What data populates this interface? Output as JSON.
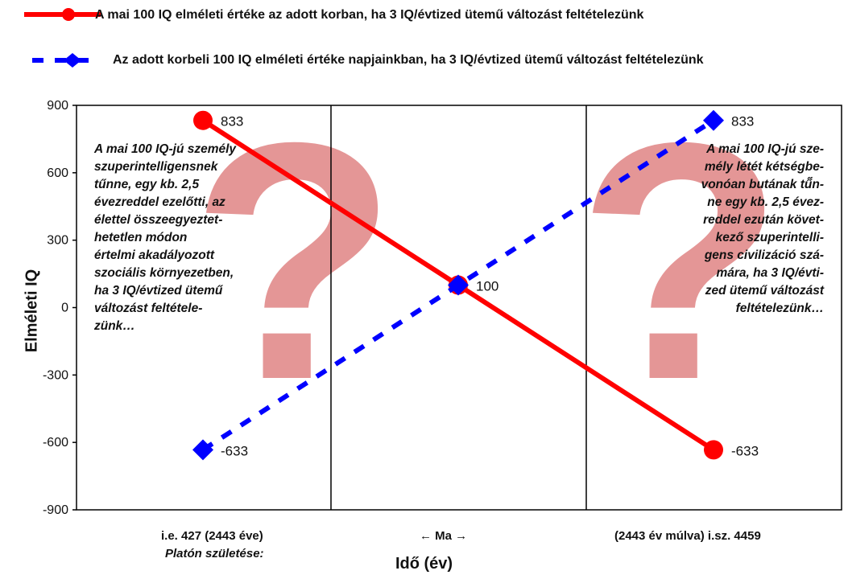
{
  "colors": {
    "series_red": "#ff0000",
    "series_blue": "#0000ff",
    "question_mark": "#d96a6a"
  },
  "legend": [
    {
      "label": "A mai 100 IQ elméleti értéke az adott korban, ha 3 IQ/évtized ütemű változást feltételezünk",
      "color": "#ff0000",
      "style": "solid-circle"
    },
    {
      "label": "Az adott korbeli 100 IQ elméleti értéke napjainkban, ha 3 IQ/évtized ütemű változást feltételezünk",
      "color": "#0000ff",
      "style": "dashed-diamond"
    }
  ],
  "notes": {
    "left": [
      "A mai 100 IQ-jú személy",
      "szuperintelligensnek",
      "tűnne, egy kb. 2,5",
      "évezreddel ezelőtti, az",
      "élettel  összeegyeztet-",
      "hetetlen  módon",
      "értelmi akadályozott",
      "szociális környezetben,",
      "ha 3 IQ/évtized ütemű",
      "változást feltétele-",
      "zünk…"
    ],
    "right": [
      "A mai 100 IQ-jú sze-",
      "mély létét kétségbe-",
      "vonóan butának tű̋n-",
      "ne  egy kb. 2,5 évez-",
      "reddel ezután követ-",
      "kező szuperintelli-",
      "gens civilizáció szá-",
      "mára, ha 3 IQ/évti-",
      "zed ütemű változást",
      "feltételezünk…"
    ]
  },
  "x_categories": {
    "left": "i.e. 427  (2443 éve)",
    "left_sub": "Platón születése:",
    "middle": "←  Ma  →",
    "right": "(2443 év múlva)   i.sz. 4459"
  },
  "chart_data": {
    "type": "line",
    "xlabel": "Idő (év)",
    "ylabel": "Elméleti IQ",
    "ylim": [
      -900,
      900
    ],
    "yticks": [
      "900",
      "600",
      "300",
      "0",
      "-300",
      "-600",
      "-900"
    ],
    "x": [
      "i.e. 427",
      "Ma",
      "i.sz. 4459"
    ],
    "series": [
      {
        "color": "#ff0000",
        "marker": "circle",
        "dash": false,
        "values": [
          833,
          100,
          -633
        ],
        "labels": [
          "833",
          "100",
          "-633"
        ]
      },
      {
        "color": "#0000ff",
        "marker": "diamond",
        "dash": true,
        "values": [
          -633,
          100,
          833
        ],
        "labels": [
          "-633",
          "",
          "833"
        ]
      }
    ],
    "grid": false,
    "legend_position": "top"
  }
}
